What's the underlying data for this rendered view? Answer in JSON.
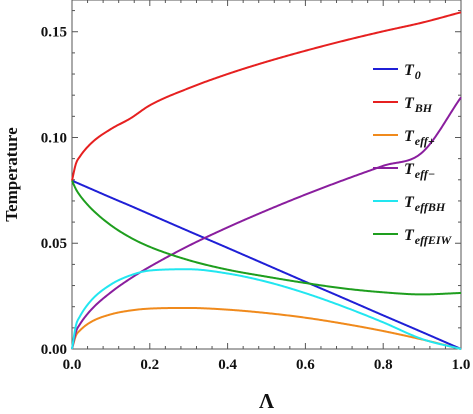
{
  "chart_data": {
    "type": "line",
    "xlabel": "Λ",
    "ylabel": "Temperature",
    "xlim": [
      0,
      1
    ],
    "ylim": [
      0,
      0.165
    ],
    "xticks": [
      0.0,
      0.2,
      0.4,
      0.6,
      0.8,
      1.0
    ],
    "xtick_labels": [
      "0.0",
      "0.2",
      "0.4",
      "0.6",
      "0.8",
      "1.0"
    ],
    "yticks": [
      0.0,
      0.05,
      0.1,
      0.15
    ],
    "ytick_labels": [
      "0.00",
      "0.05",
      "0.10",
      "0.15"
    ],
    "grid": false,
    "legend_position": "right, upper-middle",
    "x": [
      0.0,
      0.01,
      0.02,
      0.05,
      0.1,
      0.15,
      0.2,
      0.3,
      0.4,
      0.5,
      0.6,
      0.7,
      0.8,
      0.9,
      1.0
    ],
    "series": [
      {
        "name": "T0",
        "name_main": "T",
        "name_sub": "0",
        "color": "#1f1fd6",
        "values": [
          0.0796,
          0.0788,
          0.078,
          0.0756,
          0.0716,
          0.0677,
          0.0637,
          0.0557,
          0.0478,
          0.0398,
          0.0318,
          0.0239,
          0.0159,
          0.008,
          0.0
        ]
      },
      {
        "name": "TBH",
        "name_main": "T",
        "name_sub": "BH",
        "color": "#e62020",
        "values": [
          0.0796,
          0.0876,
          0.0909,
          0.0974,
          0.104,
          0.109,
          0.1152,
          0.1233,
          0.13,
          0.1358,
          0.141,
          0.1458,
          0.1502,
          0.1543,
          0.1592
        ]
      },
      {
        "name": "Teff+",
        "name_main": "T",
        "name_sub": "eff+",
        "color": "#f08a1c",
        "values": [
          0.0,
          0.0063,
          0.0087,
          0.0129,
          0.0164,
          0.0182,
          0.0191,
          0.0194,
          0.0186,
          0.017,
          0.0148,
          0.0119,
          0.0085,
          0.0045,
          0.0
        ]
      },
      {
        "name": "Teff−",
        "name_main": "T",
        "name_sub": "eff−",
        "color": "#8a1e9e",
        "values": [
          0.0,
          0.0081,
          0.0116,
          0.0187,
          0.0268,
          0.0333,
          0.0389,
          0.0488,
          0.0575,
          0.0655,
          0.073,
          0.08,
          0.0866,
          0.0929,
          0.119
        ]
      },
      {
        "name": "TeffBH",
        "name_main": "T",
        "name_sub": "effBH",
        "color": "#22e6f0",
        "values": [
          0.0,
          0.0111,
          0.0153,
          0.0231,
          0.0305,
          0.0348,
          0.0371,
          0.0377,
          0.0357,
          0.0318,
          0.0264,
          0.0199,
          0.0126,
          0.0047,
          0.0
        ]
      },
      {
        "name": "TeffEIW",
        "name_main": "T",
        "name_sub": "effEIW",
        "color": "#1e9e1e",
        "values": [
          0.0796,
          0.0756,
          0.0727,
          0.0663,
          0.0585,
          0.0527,
          0.0483,
          0.042,
          0.0375,
          0.0342,
          0.0312,
          0.0286,
          0.0268,
          0.0258,
          0.0265
        ]
      }
    ]
  }
}
